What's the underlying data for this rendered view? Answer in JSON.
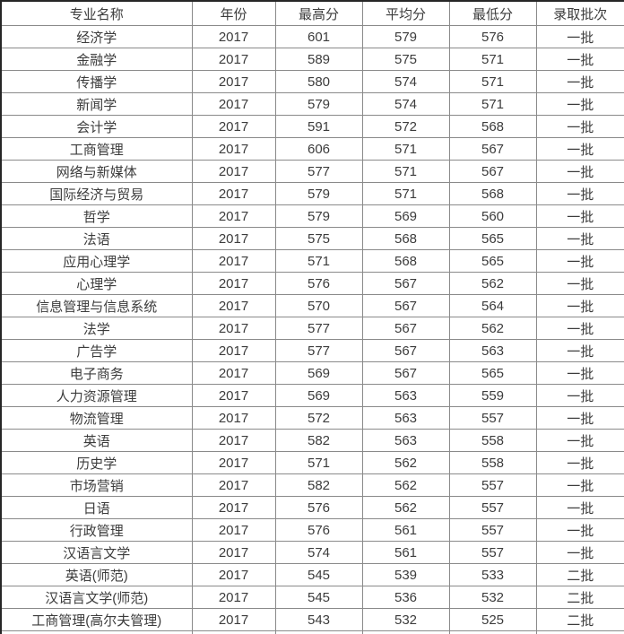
{
  "colors": {
    "outer_border": "#262626",
    "inner_border": "#8a8a8a",
    "text": "#3c3c3c",
    "background": "#ffffff"
  },
  "table": {
    "columns": [
      "专业名称",
      "年份",
      "最高分",
      "平均分",
      "最低分",
      "录取批次"
    ],
    "rows": [
      [
        "经济学",
        "2017",
        "601",
        "579",
        "576",
        "一批"
      ],
      [
        "金融学",
        "2017",
        "589",
        "575",
        "571",
        "一批"
      ],
      [
        "传播学",
        "2017",
        "580",
        "574",
        "571",
        "一批"
      ],
      [
        "新闻学",
        "2017",
        "579",
        "574",
        "571",
        "一批"
      ],
      [
        "会计学",
        "2017",
        "591",
        "572",
        "568",
        "一批"
      ],
      [
        "工商管理",
        "2017",
        "606",
        "571",
        "567",
        "一批"
      ],
      [
        "网络与新媒体",
        "2017",
        "577",
        "571",
        "567",
        "一批"
      ],
      [
        "国际经济与贸易",
        "2017",
        "579",
        "571",
        "568",
        "一批"
      ],
      [
        "哲学",
        "2017",
        "579",
        "569",
        "560",
        "一批"
      ],
      [
        "法语",
        "2017",
        "575",
        "568",
        "565",
        "一批"
      ],
      [
        "应用心理学",
        "2017",
        "571",
        "568",
        "565",
        "一批"
      ],
      [
        "心理学",
        "2017",
        "576",
        "567",
        "562",
        "一批"
      ],
      [
        "信息管理与信息系统",
        "2017",
        "570",
        "567",
        "564",
        "一批"
      ],
      [
        "法学",
        "2017",
        "577",
        "567",
        "562",
        "一批"
      ],
      [
        "广告学",
        "2017",
        "577",
        "567",
        "563",
        "一批"
      ],
      [
        "电子商务",
        "2017",
        "569",
        "567",
        "565",
        "一批"
      ],
      [
        "人力资源管理",
        "2017",
        "569",
        "563",
        "559",
        "一批"
      ],
      [
        "物流管理",
        "2017",
        "572",
        "563",
        "557",
        "一批"
      ],
      [
        "英语",
        "2017",
        "582",
        "563",
        "558",
        "一批"
      ],
      [
        "历史学",
        "2017",
        "571",
        "562",
        "558",
        "一批"
      ],
      [
        "市场营销",
        "2017",
        "582",
        "562",
        "557",
        "一批"
      ],
      [
        "日语",
        "2017",
        "576",
        "562",
        "557",
        "一批"
      ],
      [
        "行政管理",
        "2017",
        "576",
        "561",
        "557",
        "一批"
      ],
      [
        "汉语言文学",
        "2017",
        "574",
        "561",
        "557",
        "一批"
      ],
      [
        "英语(师范)",
        "2017",
        "545",
        "539",
        "533",
        "二批"
      ],
      [
        "汉语言文学(师范)",
        "2017",
        "545",
        "536",
        "532",
        "二批"
      ],
      [
        "工商管理(高尔夫管理)",
        "2017",
        "543",
        "532",
        "525",
        "二批"
      ]
    ]
  }
}
